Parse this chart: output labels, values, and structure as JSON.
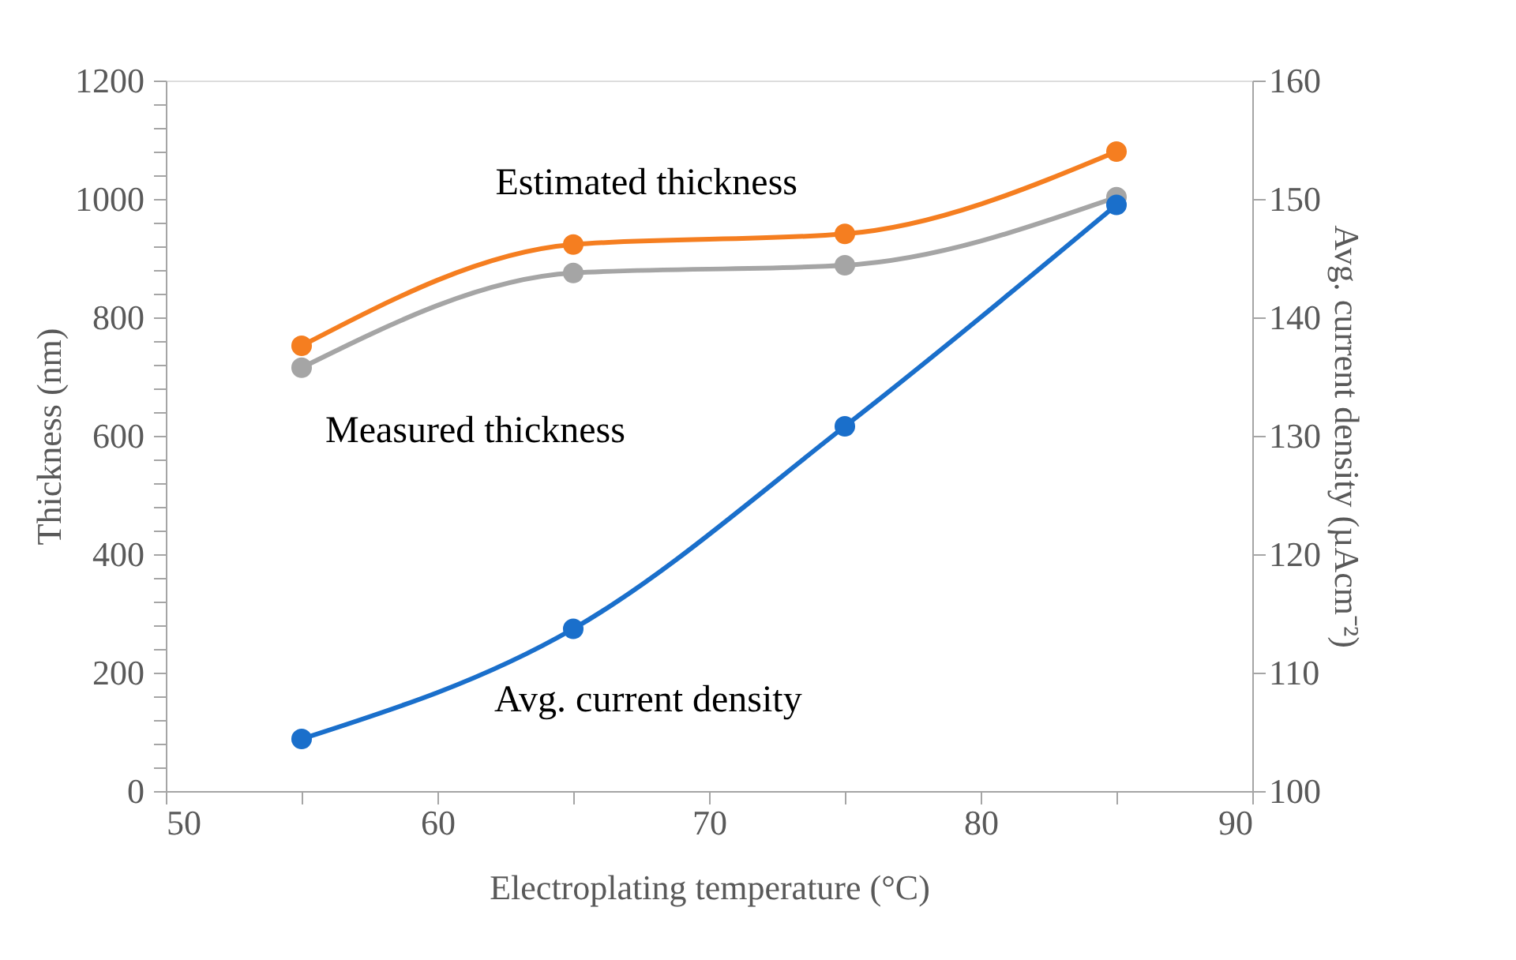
{
  "chart_data": {
    "type": "line",
    "xlabel": "Electroplating temperature (°C)",
    "ylabel": "Thickness (nm)",
    "y2label": "Avg. current density (µAcm⁻²)",
    "x": [
      55,
      65,
      75,
      85
    ],
    "series": [
      {
        "name": "Estimated thickness",
        "color": "#f57e20",
        "values": [
          752,
          923,
          941,
          1080
        ]
      },
      {
        "name": "Measured thickness",
        "color": "#a5a5a5",
        "values": [
          715,
          875,
          888,
          1003
        ]
      },
      {
        "name": "Avg. current density",
        "color": "#1a6fcb",
        "values": [
          104.4,
          113.7,
          130.8,
          149.5
        ],
        "axis": "y2"
      }
    ],
    "xlim": [
      50,
      90
    ],
    "xticks": [
      50,
      {
        "value": 55,
        "label": null
      },
      60,
      {
        "value": 65,
        "label": null
      },
      70,
      {
        "value": 75,
        "label": null
      },
      80,
      {
        "value": 85,
        "label": null
      },
      90
    ],
    "ylim": [
      0,
      1200
    ],
    "yticks": [
      0,
      {
        "value": 40,
        "label": null
      },
      {
        "value": 80,
        "label": null
      },
      {
        "value": 120,
        "label": null
      },
      {
        "value": 160,
        "label": null
      },
      200,
      {
        "value": 240,
        "label": null
      },
      {
        "value": 280,
        "label": null
      },
      {
        "value": 320,
        "label": null
      },
      {
        "value": 360,
        "label": null
      },
      400,
      {
        "value": 440,
        "label": null
      },
      {
        "value": 480,
        "label": null
      },
      {
        "value": 520,
        "label": null
      },
      {
        "value": 560,
        "label": null
      },
      600,
      {
        "value": 640,
        "label": null
      },
      {
        "value": 680,
        "label": null
      },
      {
        "value": 720,
        "label": null
      },
      {
        "value": 760,
        "label": null
      },
      800,
      {
        "value": 840,
        "label": null
      },
      {
        "value": 880,
        "label": null
      },
      {
        "value": 920,
        "label": null
      },
      {
        "value": 960,
        "label": null
      },
      1000,
      {
        "value": 1040,
        "label": null
      },
      {
        "value": 1080,
        "label": null
      },
      {
        "value": 1120,
        "label": null
      },
      {
        "value": 1160,
        "label": null
      },
      1200
    ],
    "y2lim": [
      100,
      160
    ],
    "y2ticks": [
      100,
      110,
      120,
      130,
      140,
      150,
      160
    ],
    "grid": false,
    "marker": "circle",
    "line_style": "solid"
  }
}
